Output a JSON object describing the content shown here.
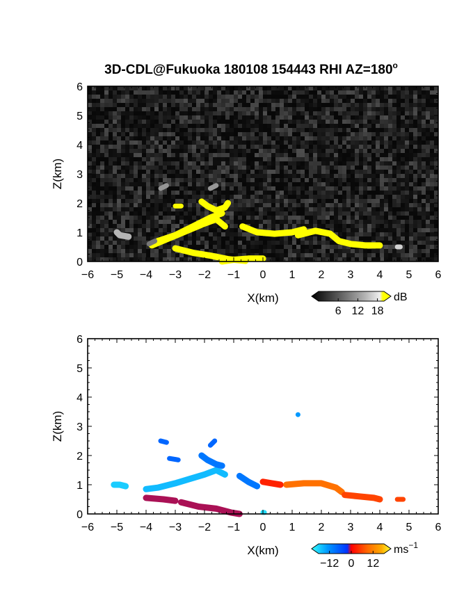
{
  "figure": {
    "title": "3D-CDL@Fukuoka 180108 154443 RHI AZ=180",
    "title_degree": "o"
  },
  "chart_data": [
    {
      "type": "heatmap",
      "name": "snr-panel",
      "xlabel": "X(km)",
      "ylabel": "Z(km)",
      "xlim": [
        -6,
        6
      ],
      "ylim": [
        0,
        6
      ],
      "x_ticks": [
        -6,
        -5,
        -4,
        -3,
        -2,
        -1,
        0,
        1,
        2,
        3,
        4,
        5,
        6
      ],
      "y_ticks": [
        0,
        1,
        2,
        3,
        4,
        5,
        6
      ],
      "background": "noise",
      "colorbar": {
        "unit": "dB",
        "ticks": [
          6,
          12,
          18
        ],
        "colors": [
          "#000000",
          "#3a3a3a",
          "#777777",
          "#b5b5b5",
          "#eeeeee",
          "#ffff00"
        ]
      },
      "features": [
        {
          "value": 20,
          "pts": [
            [
              -1.4,
              0.0
            ],
            [
              -1.0,
              0.06
            ],
            [
              -0.5,
              0.1
            ],
            [
              0.0,
              0.1
            ]
          ]
        },
        {
          "value": 20,
          "pts": [
            [
              -3.0,
              0.45
            ],
            [
              -2.4,
              0.3
            ],
            [
              -1.8,
              0.2
            ],
            [
              -1.2,
              0.08
            ],
            [
              -0.6,
              0.02
            ]
          ]
        },
        {
          "value": 20,
          "pts": [
            [
              -3.8,
              0.55
            ],
            [
              -3.2,
              0.8
            ],
            [
              -2.6,
              1.05
            ],
            [
              -2.0,
              1.3
            ],
            [
              -1.6,
              1.45
            ],
            [
              -1.3,
              1.2
            ]
          ]
        },
        {
          "value": 20,
          "pts": [
            [
              -3.6,
              0.7
            ],
            [
              -3.0,
              0.9
            ],
            [
              -2.4,
              1.2
            ],
            [
              -1.8,
              1.5
            ],
            [
              -1.4,
              1.65
            ]
          ]
        },
        {
          "value": 20,
          "pts": [
            [
              -2.1,
              2.05
            ],
            [
              -1.9,
              1.9
            ],
            [
              -1.6,
              1.75
            ],
            [
              -1.3,
              1.85
            ],
            [
              -1.2,
              2.0
            ]
          ]
        },
        {
          "value": 20,
          "pts": [
            [
              -3.0,
              1.9
            ],
            [
              -2.8,
              1.9
            ]
          ]
        },
        {
          "value": 20,
          "pts": [
            [
              -0.7,
              1.2
            ],
            [
              -0.2,
              1.0
            ],
            [
              0.4,
              0.95
            ],
            [
              1.0,
              1.0
            ],
            [
              1.4,
              1.1
            ]
          ]
        },
        {
          "value": 20,
          "pts": [
            [
              1.2,
              0.9
            ],
            [
              1.8,
              1.05
            ],
            [
              2.3,
              0.95
            ],
            [
              2.6,
              0.7
            ],
            [
              3.0,
              0.6
            ],
            [
              3.5,
              0.55
            ],
            [
              4.0,
              0.55
            ]
          ]
        },
        {
          "value": 10,
          "pts": [
            [
              -1.8,
              2.5
            ],
            [
              -1.6,
              2.6
            ]
          ]
        },
        {
          "value": 10,
          "pts": [
            [
              -3.5,
              2.5
            ],
            [
              -3.3,
              2.6
            ]
          ]
        },
        {
          "value": 12,
          "pts": [
            [
              -5.0,
              1.0
            ],
            [
              -4.9,
              0.9
            ],
            [
              -4.6,
              0.85
            ]
          ]
        },
        {
          "value": 8,
          "pts": [
            [
              -3.9,
              0.6
            ],
            [
              -3.7,
              0.7
            ]
          ]
        },
        {
          "value": 14,
          "pts": [
            [
              4.6,
              0.5
            ],
            [
              4.7,
              0.5
            ]
          ]
        }
      ]
    },
    {
      "type": "heatmap",
      "name": "velocity-panel",
      "xlabel": "X(km)",
      "ylabel": "Z(km)",
      "xlim": [
        -6,
        6
      ],
      "ylim": [
        0,
        6
      ],
      "x_ticks": [
        -6,
        -5,
        -4,
        -3,
        -2,
        -1,
        0,
        1,
        2,
        3,
        4,
        5,
        6
      ],
      "y_ticks": [
        0,
        1,
        2,
        3,
        4,
        5,
        6
      ],
      "background": "none",
      "colorbar": {
        "unit": "ms",
        "unit_exponent": "−1",
        "ticks": [
          -12,
          0,
          12
        ],
        "tick_labels": [
          "−12",
          "0",
          "12"
        ],
        "colors": [
          "#33ffff",
          "#0099ff",
          "#0033ff",
          "#ff0000",
          "#ff6600",
          "#ffaa00",
          "#ffff33"
        ]
      },
      "features": [
        {
          "value": -15,
          "pts": [
            [
              -5.1,
              1.0
            ],
            [
              -4.9,
              1.0
            ],
            [
              -4.7,
              0.95
            ]
          ]
        },
        {
          "value": -14,
          "pts": [
            [
              -4.0,
              0.85
            ],
            [
              -3.6,
              0.9
            ],
            [
              -3.0,
              1.05
            ],
            [
              -2.5,
              1.2
            ],
            [
              -2.0,
              1.35
            ],
            [
              -1.6,
              1.5
            ],
            [
              -1.3,
              1.35
            ]
          ]
        },
        {
          "value": -10,
          "pts": [
            [
              -2.1,
              2.0
            ],
            [
              -1.9,
              1.85
            ],
            [
              -1.6,
              1.7
            ],
            [
              -1.4,
              1.65
            ]
          ]
        },
        {
          "value": -9,
          "pts": [
            [
              -1.8,
              2.35
            ],
            [
              -1.65,
              2.5
            ]
          ]
        },
        {
          "value": -9,
          "pts": [
            [
              -3.5,
              2.5
            ],
            [
              -3.3,
              2.45
            ]
          ]
        },
        {
          "value": -9,
          "pts": [
            [
              -3.2,
              1.9
            ],
            [
              -2.9,
              1.85
            ]
          ]
        },
        {
          "value": -10,
          "pts": [
            [
              -0.8,
              1.3
            ],
            [
              -0.5,
              1.1
            ],
            [
              -0.2,
              0.95
            ]
          ]
        },
        {
          "value": -16,
          "pts": [
            [
              0.0,
              0.05
            ],
            [
              0.05,
              0.05
            ]
          ]
        },
        {
          "value": -12,
          "pts": [
            [
              1.2,
              3.4
            ],
            [
              1.2,
              3.4
            ]
          ]
        },
        {
          "value": -2,
          "pts": [
            [
              -4.0,
              0.55
            ],
            [
              -3.4,
              0.5
            ],
            [
              -3.0,
              0.45
            ]
          ]
        },
        {
          "value": -2,
          "pts": [
            [
              -2.8,
              0.4
            ],
            [
              -2.2,
              0.25
            ],
            [
              -1.6,
              0.18
            ],
            [
              -1.1,
              0.05
            ],
            [
              -0.8,
              0.0
            ]
          ]
        },
        {
          "value": 2,
          "pts": [
            [
              0.0,
              1.1
            ],
            [
              0.3,
              1.05
            ],
            [
              0.6,
              1.0
            ]
          ]
        },
        {
          "value": 7,
          "pts": [
            [
              0.8,
              1.0
            ],
            [
              1.4,
              1.05
            ],
            [
              2.0,
              1.05
            ],
            [
              2.5,
              0.9
            ],
            [
              2.7,
              0.75
            ]
          ]
        },
        {
          "value": 4,
          "pts": [
            [
              2.8,
              0.65
            ],
            [
              3.3,
              0.6
            ],
            [
              3.8,
              0.55
            ],
            [
              4.0,
              0.5
            ]
          ]
        },
        {
          "value": 4,
          "pts": [
            [
              4.6,
              0.5
            ],
            [
              4.8,
              0.5
            ]
          ]
        }
      ]
    }
  ]
}
